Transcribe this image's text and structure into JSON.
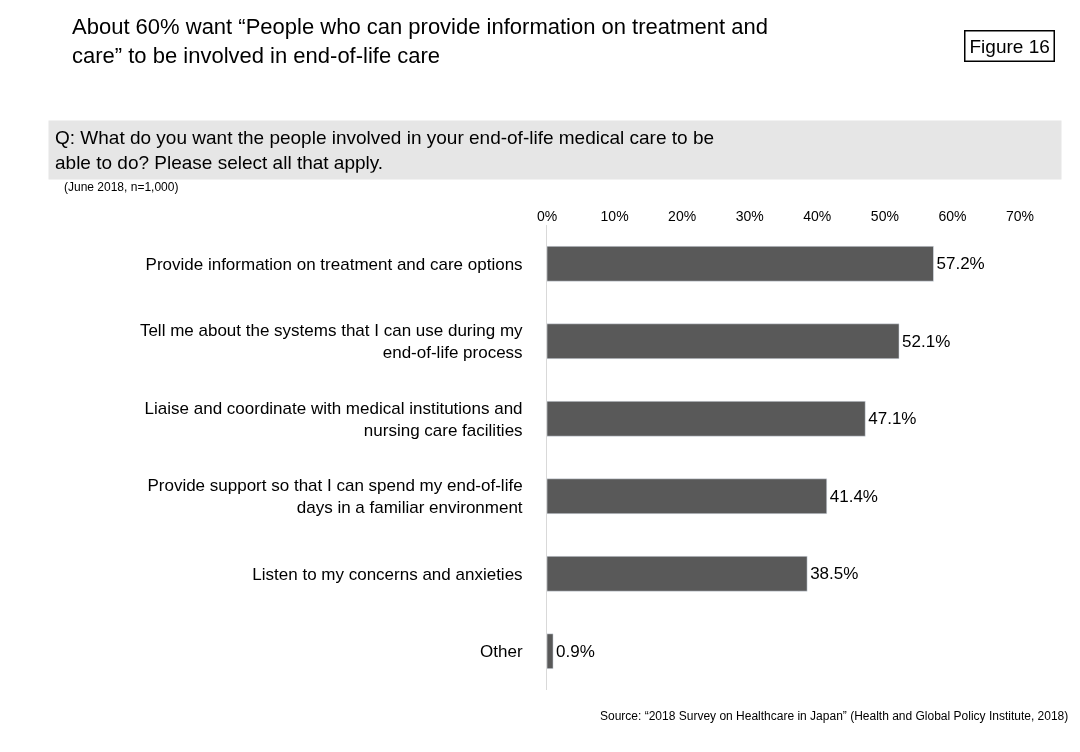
{
  "chart_data": {
    "type": "bar",
    "orientation": "horizontal",
    "title": "About 60% want “People who can provide information on treatment and care” to be involved in end-of-life care",
    "subtitle": "Q: What do you want the people involved in your end-of-life medical care to be able to do? Please select all that apply.",
    "annotations": [
      "Figure 16",
      "(June 2018, n=1,000)",
      "Source: “2018 Survey on Healthcare in Japan” (Health and Global Policy Institute, 2018)"
    ],
    "categories": [
      "Provide information on treatment and care options",
      "Tell me about the systems that I can use during my end-of-life process",
      "Liaise and coordinate with medical institutions and nursing care facilities",
      "Provide support so that I can spend my end-of-life days in a familiar environment",
      "Listen to my concerns and anxieties",
      "Other"
    ],
    "values": [
      57.2,
      52.1,
      47.1,
      41.4,
      38.5,
      0.9
    ],
    "value_labels": [
      "57.2%",
      "52.1%",
      "47.1%",
      "41.4%",
      "38.5%",
      "0.9%"
    ],
    "color": "#595959",
    "xlim": [
      0,
      70
    ],
    "xticks": [
      {
        "value": 0,
        "label": "0%"
      },
      {
        "value": 10,
        "label": "10%"
      },
      {
        "value": 20,
        "label": "20%"
      },
      {
        "value": 30,
        "label": "30%"
      },
      {
        "value": 40,
        "label": "40%"
      },
      {
        "value": 50,
        "label": "50%"
      },
      {
        "value": 60,
        "label": "60%"
      },
      {
        "value": 70,
        "label": "70%"
      }
    ],
    "grid": false,
    "legend": false
  }
}
